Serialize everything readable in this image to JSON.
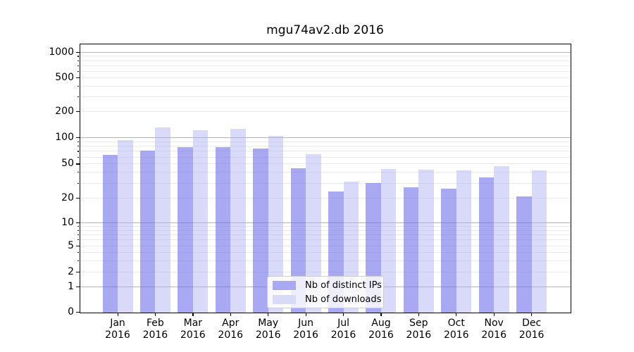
{
  "figure": {
    "background": "#ffffff"
  },
  "chart_data": {
    "type": "bar",
    "title": "mgu74av2.db 2016",
    "categories": [
      "Jan 2016",
      "Feb 2016",
      "Mar 2016",
      "Apr 2016",
      "May 2016",
      "Jun 2016",
      "Jul 2016",
      "Aug 2016",
      "Sep 2016",
      "Oct 2016",
      "Nov 2016",
      "Dec 2016"
    ],
    "x_tick_line1": [
      "Jan",
      "Feb",
      "Mar",
      "Apr",
      "May",
      "Jun",
      "Jul",
      "Aug",
      "Sep",
      "Oct",
      "Nov",
      "Dec"
    ],
    "x_tick_line2": "2016",
    "series": [
      {
        "name": "Nb of distinct IPs",
        "values": [
          64,
          71,
          78,
          78,
          75,
          45,
          24,
          30,
          27,
          26,
          35,
          21
        ],
        "fill": "rgba(110,110,235,0.60)",
        "swatch": "#a8a8f3"
      },
      {
        "name": "Nb of downloads",
        "values": [
          94,
          131,
          122,
          128,
          106,
          65,
          31,
          44,
          43,
          42,
          47,
          42
        ],
        "fill": "rgba(175,175,242,0.47)",
        "swatch": "#d9d9f8"
      }
    ],
    "y_axis": {
      "scale": "symlog",
      "tick_values": [
        0,
        1,
        2,
        5,
        10,
        20,
        50,
        100,
        200,
        500,
        1000
      ],
      "tick_labels": [
        "0",
        "1",
        "2",
        "5",
        "10",
        "20",
        "50",
        "100",
        "200",
        "500",
        "1000"
      ],
      "ylim": [
        0,
        1250
      ],
      "grid_major": [
        1,
        10,
        100,
        1000
      ],
      "grid_minor_bases": [
        1,
        10,
        100
      ]
    },
    "legend": {
      "position": "lower center"
    },
    "colors": {
      "major_grid": "#b4b4b4",
      "minor_grid": "#eaeaea",
      "spine": "#000000",
      "text": "#000000"
    }
  }
}
